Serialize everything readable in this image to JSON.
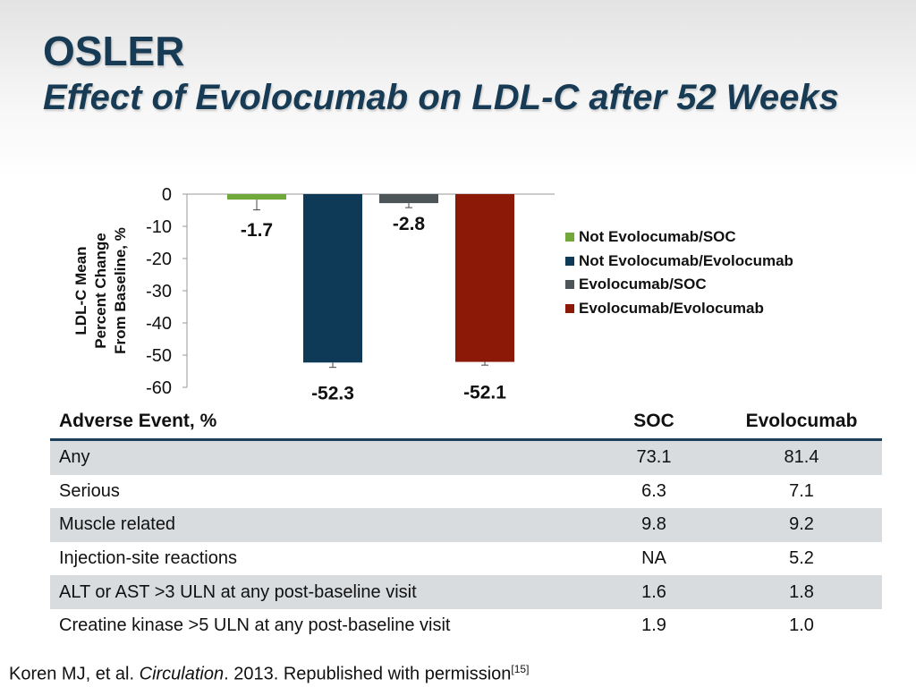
{
  "slide": {
    "title": "OSLER",
    "subtitle": "Effect of Evolocumab on LDL-C after 52 Weeks"
  },
  "chart_data": {
    "type": "bar",
    "ylabel_lines": [
      "LDL-C Mean",
      "Percent Change",
      "From Baseline, %"
    ],
    "ylim": [
      -60,
      0
    ],
    "yticks": [
      0,
      -10,
      -20,
      -30,
      -40,
      -50,
      -60
    ],
    "legend_position": "right",
    "series": [
      {
        "name": "Not Evolocumab/SOC",
        "value": -1.7,
        "label": "-1.7",
        "color": "#70a83a",
        "error": 3.2
      },
      {
        "name": "Not Evolocumab/Evolocumab",
        "value": -52.3,
        "label": "-52.3",
        "color": "#0f3a57",
        "error": 1.5
      },
      {
        "name": "Evolocumab/SOC",
        "value": -2.8,
        "label": "-2.8",
        "color": "#4e5558",
        "error": 1.4
      },
      {
        "name": "Evolocumab/Evolocumab",
        "value": -52.1,
        "label": "-52.1",
        "color": "#8c1808",
        "error": 1.0
      }
    ]
  },
  "table": {
    "headers": [
      "Adverse Event, %",
      "SOC",
      "Evolocumab"
    ],
    "rows": [
      {
        "event": "Any",
        "soc": "73.1",
        "evo": "81.4"
      },
      {
        "event": "Serious",
        "soc": "6.3",
        "evo": "7.1"
      },
      {
        "event": "Muscle related",
        "soc": "9.8",
        "evo": "9.2"
      },
      {
        "event": "Injection-site reactions",
        "soc": "NA",
        "evo": "5.2"
      },
      {
        "event": "ALT or AST >3 ULN at any post-baseline visit",
        "soc": "1.6",
        "evo": "1.8"
      },
      {
        "event": "Creatine kinase >5 ULN at any post-baseline visit",
        "soc": "1.9",
        "evo": "1.0"
      }
    ]
  },
  "citation": {
    "authors": "Koren MJ, et al. ",
    "journal": "Circulation",
    "rest": ". 2013. Republished with permission",
    "ref": "[15]"
  }
}
